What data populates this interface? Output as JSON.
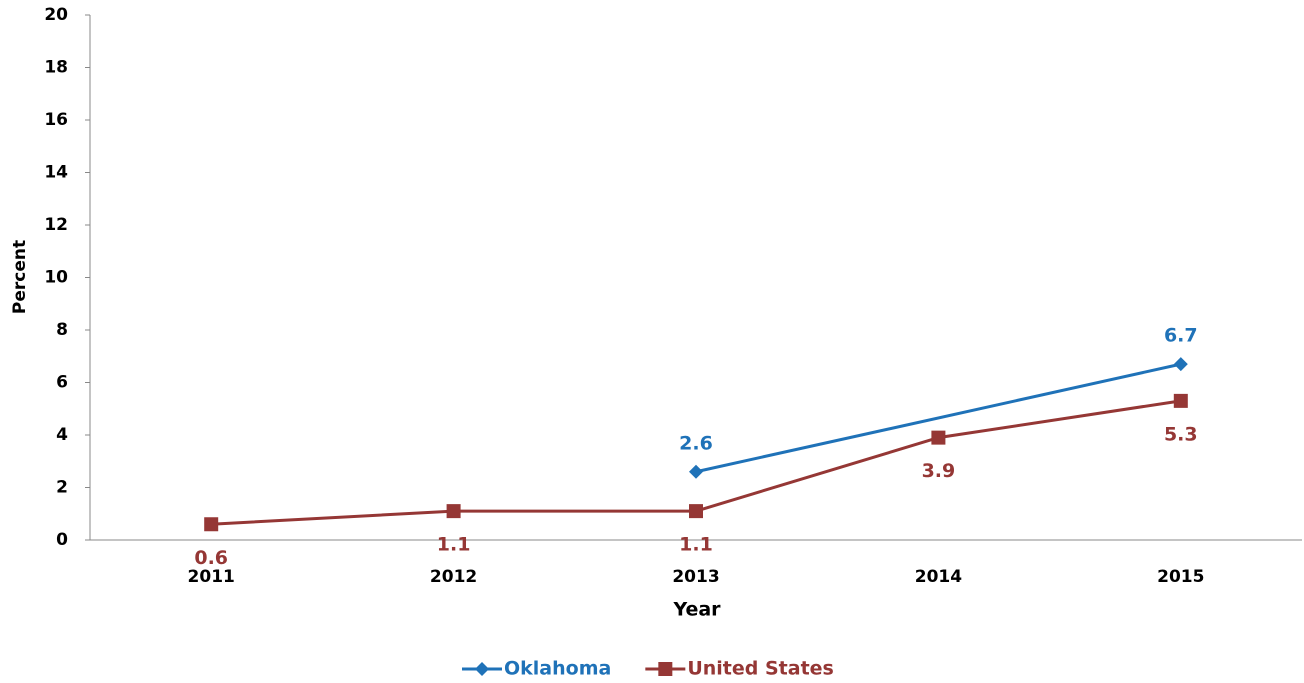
{
  "chart_data": {
    "type": "line",
    "xlabel": "Year",
    "ylabel": "Percent",
    "xlim": [
      2010.5,
      2015.5
    ],
    "xticks": [
      2011,
      2012,
      2013,
      2014,
      2015
    ],
    "ylim": [
      0,
      20
    ],
    "yticks": [
      0,
      2,
      4,
      6,
      8,
      10,
      12,
      14,
      16,
      18,
      20
    ],
    "legend": "bottom",
    "series": [
      {
        "name": "Oklahoma",
        "color": "#1f72b8",
        "marker": "diamond",
        "label_side": "above",
        "x": [
          2013,
          2015
        ],
        "values": [
          2.6,
          6.7
        ]
      },
      {
        "name": "United States",
        "color": "#953735",
        "marker": "square",
        "label_side": "below",
        "x": [
          2011,
          2012,
          2013,
          2014,
          2015
        ],
        "values": [
          0.6,
          1.1,
          1.1,
          3.9,
          5.3
        ]
      }
    ]
  }
}
